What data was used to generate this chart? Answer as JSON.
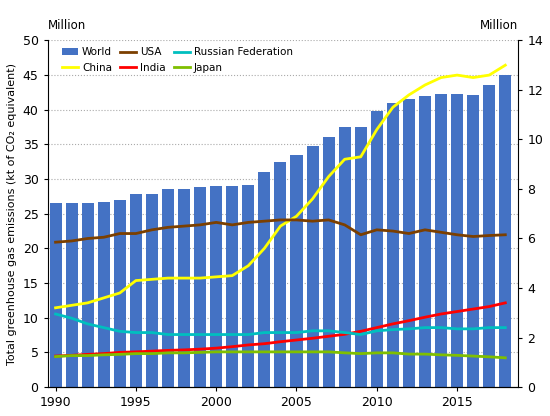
{
  "years": [
    1990,
    1991,
    1992,
    1993,
    1994,
    1995,
    1996,
    1997,
    1998,
    1999,
    2000,
    2001,
    2002,
    2003,
    2004,
    2005,
    2006,
    2007,
    2008,
    2009,
    2010,
    2011,
    2012,
    2013,
    2014,
    2015,
    2016,
    2017,
    2018
  ],
  "world": [
    26.6,
    26.6,
    26.6,
    26.7,
    27.0,
    27.8,
    27.8,
    28.5,
    28.5,
    28.8,
    29.0,
    29.0,
    29.2,
    31.0,
    32.5,
    33.5,
    34.8,
    36.0,
    37.5,
    37.5,
    39.8,
    41.0,
    41.5,
    42.0,
    42.3,
    42.3,
    42.2,
    43.5,
    45.0
  ],
  "china": [
    3.2,
    3.3,
    3.4,
    3.6,
    3.8,
    4.3,
    4.35,
    4.4,
    4.4,
    4.4,
    4.45,
    4.5,
    4.9,
    5.6,
    6.5,
    6.9,
    7.6,
    8.5,
    9.2,
    9.3,
    10.4,
    11.3,
    11.8,
    12.2,
    12.5,
    12.6,
    12.5,
    12.6,
    13.0
  ],
  "usa": [
    5.85,
    5.9,
    6.0,
    6.05,
    6.2,
    6.2,
    6.35,
    6.45,
    6.5,
    6.55,
    6.65,
    6.55,
    6.65,
    6.7,
    6.75,
    6.75,
    6.7,
    6.75,
    6.55,
    6.15,
    6.35,
    6.3,
    6.2,
    6.35,
    6.25,
    6.15,
    6.08,
    6.12,
    6.15
  ],
  "india": [
    1.25,
    1.28,
    1.32,
    1.35,
    1.4,
    1.42,
    1.45,
    1.48,
    1.5,
    1.53,
    1.57,
    1.63,
    1.7,
    1.75,
    1.83,
    1.9,
    1.97,
    2.05,
    2.13,
    2.25,
    2.4,
    2.55,
    2.68,
    2.82,
    2.95,
    3.05,
    3.15,
    3.25,
    3.4
  ],
  "russia": [
    2.95,
    2.78,
    2.55,
    2.4,
    2.25,
    2.2,
    2.2,
    2.12,
    2.12,
    2.12,
    2.12,
    2.12,
    2.12,
    2.2,
    2.2,
    2.2,
    2.27,
    2.27,
    2.2,
    2.12,
    2.27,
    2.32,
    2.35,
    2.4,
    2.4,
    2.35,
    2.35,
    2.4,
    2.4
  ],
  "japan": [
    1.23,
    1.27,
    1.27,
    1.3,
    1.32,
    1.35,
    1.35,
    1.38,
    1.38,
    1.4,
    1.42,
    1.42,
    1.42,
    1.42,
    1.42,
    1.42,
    1.42,
    1.42,
    1.38,
    1.35,
    1.38,
    1.38,
    1.33,
    1.33,
    1.3,
    1.28,
    1.25,
    1.22,
    1.18
  ],
  "bar_color": "#4472C4",
  "china_color": "#FFFF00",
  "usa_color": "#7B3F00",
  "india_color": "#FF0000",
  "russia_color": "#00BFBF",
  "japan_color": "#7FBF00",
  "ylabel_left": "Total greenhouse gas emissions (kt of CO₂ equivalent)",
  "ylim_left": [
    0,
    50
  ],
  "ylim_right": [
    0,
    14
  ],
  "yticks_left": [
    0,
    5,
    10,
    15,
    20,
    25,
    30,
    35,
    40,
    45,
    50
  ],
  "yticks_right": [
    0,
    2,
    4,
    6,
    8,
    10,
    12,
    14
  ],
  "xticks": [
    1990,
    1995,
    2000,
    2005,
    2010,
    2015
  ],
  "bg_color": "#FFFFFF",
  "grid_color": "#AAAAAA"
}
